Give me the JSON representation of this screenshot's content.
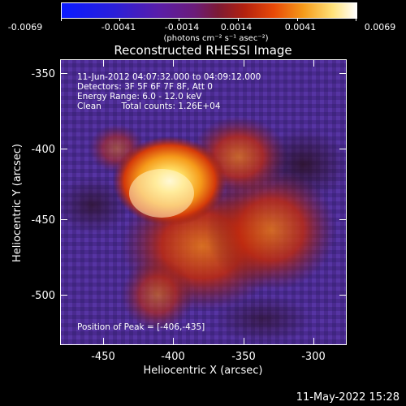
{
  "colorbar": {
    "ticks": [
      "-0.0069",
      "-0.0041",
      "-0.0014",
      "0.0014",
      "0.0041",
      "0.0069"
    ],
    "units": "(photons cm⁻² s⁻¹ asec⁻²)"
  },
  "title": "Reconstructed RHESSI Image",
  "info": {
    "line1": "11-Jun-2012 04:07:32.000 to 04:09:12.000",
    "line2": "Detectors: 3F 5F 6F 7F 8F, Att 0",
    "line3": "Energy Range: 6.0 - 12.0 keV",
    "line4_left": "Clean",
    "line4_right": "Total counts: 1.26E+04"
  },
  "peak_text": "Position of Peak = [-406,-435]",
  "x_axis": {
    "label": "Heliocentric X (arcsec)",
    "ticks": [
      "-450",
      "-400",
      "-350",
      "-300"
    ]
  },
  "y_axis": {
    "label": "Heliocentric Y (arcsec)",
    "ticks": [
      "-350",
      "-400",
      "-450",
      "-500"
    ]
  },
  "timestamp": "11-May-2022 15:28"
}
